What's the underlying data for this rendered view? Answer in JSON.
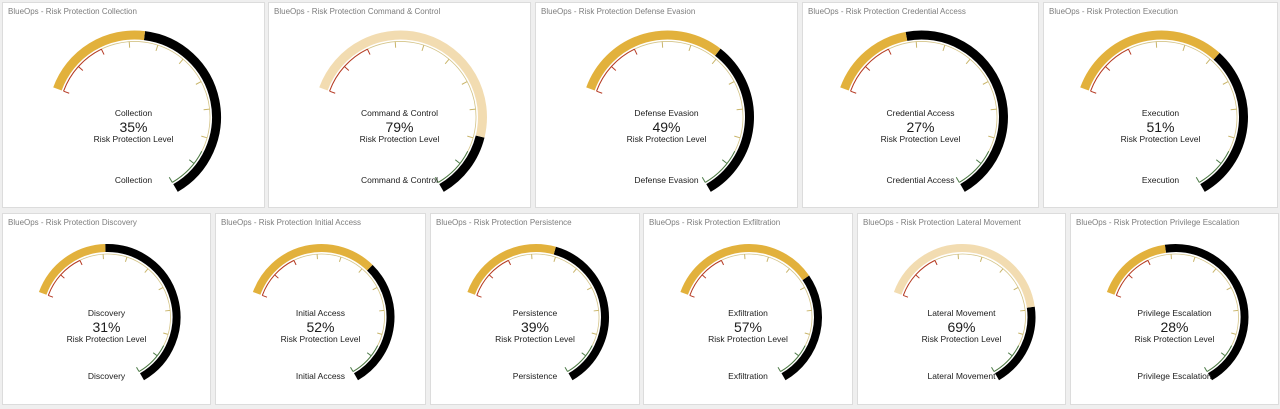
{
  "colors": {
    "fill": "#e2b13c",
    "fill_light": "#f2dcb1",
    "track": "#000000",
    "tick": "#c9b56a",
    "tick_low": "#b63b25",
    "tick_high": "#4c7a47"
  },
  "chart_data": [
    {
      "type": "gauge",
      "title": "BlueOps - Risk Protection Collection",
      "name": "Collection",
      "value": 35,
      "display": "35%",
      "sub_label": "Risk Protection Level",
      "footer": "Collection",
      "range": [
        0,
        100
      ],
      "style": "normal"
    },
    {
      "type": "gauge",
      "title": "BlueOps - Risk Protection Command & Control",
      "name": "Command & Control",
      "value": 79,
      "display": "79%",
      "sub_label": "Risk Protection Level",
      "footer": "Command & Control",
      "range": [
        0,
        100
      ],
      "style": "light"
    },
    {
      "type": "gauge",
      "title": "BlueOps - Risk Protection Defense Evasion",
      "name": "Defense Evasion",
      "value": 49,
      "display": "49%",
      "sub_label": "Risk Protection Level",
      "footer": "Defense Evasion",
      "range": [
        0,
        100
      ],
      "style": "normal"
    },
    {
      "type": "gauge",
      "title": "BlueOps - Risk Protection Credential Access",
      "name": "Credential Access",
      "value": 27,
      "display": "27%",
      "sub_label": "Risk Protection Level",
      "footer": "Credential Access",
      "range": [
        0,
        100
      ],
      "style": "normal"
    },
    {
      "type": "gauge",
      "title": "BlueOps - Risk Protection Execution",
      "name": "Execution",
      "value": 51,
      "display": "51%",
      "sub_label": "Risk Protection Level",
      "footer": "Execution",
      "range": [
        0,
        100
      ],
      "style": "normal"
    },
    {
      "type": "gauge",
      "title": "BlueOps - Risk Protection Discovery",
      "name": "Discovery",
      "value": 31,
      "display": "31%",
      "sub_label": "Risk Protection Level",
      "footer": "Discovery",
      "range": [
        0,
        100
      ],
      "style": "normal"
    },
    {
      "type": "gauge",
      "title": "BlueOps - Risk Protection Initial Access",
      "name": "Initial Access",
      "value": 52,
      "display": "52%",
      "sub_label": "Risk Protection Level",
      "footer": "Initial Access",
      "range": [
        0,
        100
      ],
      "style": "normal"
    },
    {
      "type": "gauge",
      "title": "BlueOps - Risk Protection Persistence",
      "name": "Persistence",
      "value": 39,
      "display": "39%",
      "sub_label": "Risk Protection Level",
      "footer": "Persistence",
      "range": [
        0,
        100
      ],
      "style": "normal"
    },
    {
      "type": "gauge",
      "title": "BlueOps - Risk Protection Exfiltration",
      "name": "Exfiltration",
      "value": 57,
      "display": "57%",
      "sub_label": "Risk Protection Level",
      "footer": "Exfiltration",
      "range": [
        0,
        100
      ],
      "style": "normal"
    },
    {
      "type": "gauge",
      "title": "BlueOps - Risk Protection Lateral Movement",
      "name": "Lateral Movement",
      "value": 69,
      "display": "69%",
      "sub_label": "Risk Protection Level",
      "footer": "Lateral Movement",
      "range": [
        0,
        100
      ],
      "style": "light"
    },
    {
      "type": "gauge",
      "title": "BlueOps - Risk Protection Privilege Escalation",
      "name": "Privilege Escalation",
      "value": 28,
      "display": "28%",
      "sub_label": "Risk Protection Level",
      "footer": "Privilege Escalation",
      "range": [
        0,
        100
      ],
      "style": "normal"
    }
  ]
}
